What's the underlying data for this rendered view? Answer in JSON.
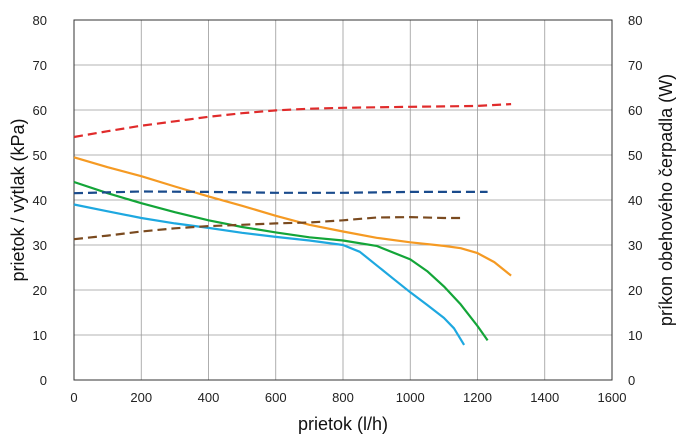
{
  "chart_data": {
    "type": "line",
    "xlabel": "prietok (l/h)",
    "ylabel": "prietok / výtlak (kPa)",
    "y2label": "príkon obehového čerpadla (W)",
    "xlim": [
      0,
      1600
    ],
    "ylim": [
      0,
      80
    ],
    "y2lim": [
      0,
      80
    ],
    "xticks": [
      0,
      200,
      400,
      600,
      800,
      1000,
      1200,
      1400,
      1600
    ],
    "yticks": [
      0,
      10,
      20,
      30,
      40,
      50,
      60,
      70,
      80
    ],
    "y2ticks": [
      0,
      10,
      20,
      30,
      40,
      50,
      60,
      70,
      80
    ],
    "grid": true,
    "series": [
      {
        "color": "#f59a23",
        "style": "solid",
        "axis": "left",
        "points": [
          [
            0,
            49.5
          ],
          [
            100,
            47.3
          ],
          [
            200,
            45.3
          ],
          [
            300,
            43.0
          ],
          [
            400,
            40.8
          ],
          [
            500,
            38.7
          ],
          [
            600,
            36.5
          ],
          [
            700,
            34.5
          ],
          [
            800,
            33.0
          ],
          [
            900,
            31.6
          ],
          [
            1000,
            30.6
          ],
          [
            1100,
            29.8
          ],
          [
            1150,
            29.3
          ],
          [
            1200,
            28.2
          ],
          [
            1250,
            26.2
          ],
          [
            1300,
            23.2
          ]
        ]
      },
      {
        "color": "#13a538",
        "style": "solid",
        "axis": "left",
        "points": [
          [
            0,
            44.0
          ],
          [
            100,
            41.5
          ],
          [
            200,
            39.3
          ],
          [
            300,
            37.3
          ],
          [
            400,
            35.5
          ],
          [
            500,
            34.0
          ],
          [
            600,
            32.8
          ],
          [
            700,
            31.7
          ],
          [
            800,
            31.0
          ],
          [
            900,
            29.8
          ],
          [
            1000,
            26.8
          ],
          [
            1050,
            24.2
          ],
          [
            1100,
            20.8
          ],
          [
            1150,
            16.8
          ],
          [
            1200,
            12.0
          ],
          [
            1230,
            8.8
          ]
        ]
      },
      {
        "color": "#1ea8e0",
        "style": "solid",
        "axis": "left",
        "points": [
          [
            0,
            39.0
          ],
          [
            100,
            37.5
          ],
          [
            200,
            36.0
          ],
          [
            300,
            34.8
          ],
          [
            400,
            33.8
          ],
          [
            500,
            32.7
          ],
          [
            600,
            31.8
          ],
          [
            700,
            31.0
          ],
          [
            800,
            30.0
          ],
          [
            850,
            28.5
          ],
          [
            900,
            25.5
          ],
          [
            950,
            22.5
          ],
          [
            1000,
            19.5
          ],
          [
            1050,
            16.7
          ],
          [
            1100,
            13.8
          ],
          [
            1130,
            11.5
          ],
          [
            1160,
            7.8
          ]
        ]
      },
      {
        "color": "#e02b2b",
        "style": "dashed",
        "axis": "right",
        "points": [
          [
            0,
            54.0
          ],
          [
            100,
            55.3
          ],
          [
            200,
            56.5
          ],
          [
            300,
            57.5
          ],
          [
            400,
            58.5
          ],
          [
            500,
            59.3
          ],
          [
            600,
            59.9
          ],
          [
            700,
            60.3
          ],
          [
            800,
            60.5
          ],
          [
            900,
            60.6
          ],
          [
            1000,
            60.7
          ],
          [
            1100,
            60.8
          ],
          [
            1200,
            60.9
          ],
          [
            1300,
            61.3
          ]
        ]
      },
      {
        "color": "#1a4b8c",
        "style": "dashed",
        "axis": "right",
        "points": [
          [
            0,
            41.5
          ],
          [
            200,
            41.9
          ],
          [
            400,
            41.8
          ],
          [
            600,
            41.6
          ],
          [
            800,
            41.6
          ],
          [
            1000,
            41.8
          ],
          [
            1230,
            41.8
          ]
        ]
      },
      {
        "color": "#7a4a1f",
        "style": "dashed",
        "axis": "right",
        "points": [
          [
            0,
            31.3
          ],
          [
            100,
            32.1
          ],
          [
            200,
            33.0
          ],
          [
            300,
            33.7
          ],
          [
            400,
            34.2
          ],
          [
            500,
            34.5
          ],
          [
            600,
            34.8
          ],
          [
            700,
            35.0
          ],
          [
            800,
            35.5
          ],
          [
            900,
            36.1
          ],
          [
            1000,
            36.2
          ],
          [
            1100,
            36.0
          ],
          [
            1150,
            36.0
          ]
        ]
      }
    ]
  }
}
